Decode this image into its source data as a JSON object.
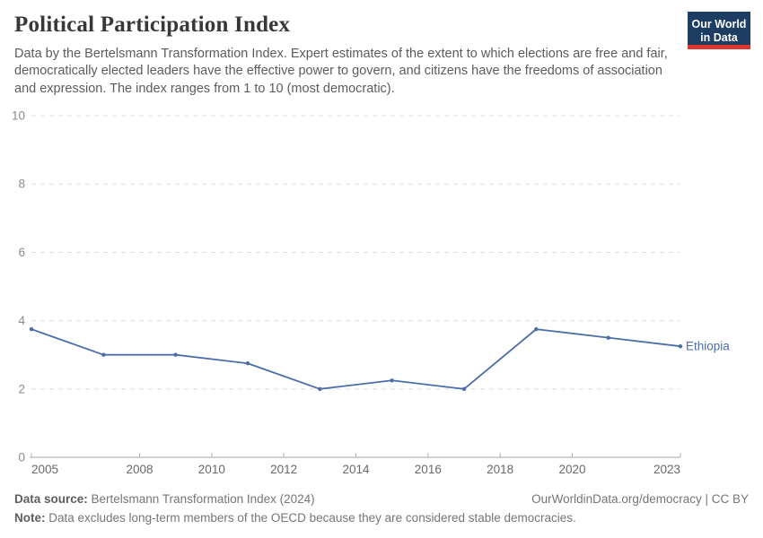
{
  "header": {
    "title": "Political Participation Index",
    "subtitle": "Data by the Bertelsmann Transformation Index. Expert estimates of the extent to which elections are free and fair, democratically elected leaders have the effective power to govern, and citizens have the freedoms of association and expression. The index ranges from 1 to 10 (most democratic).",
    "logo": {
      "line1": "Our World",
      "line2": "in Data",
      "bg_color": "#1d3d63",
      "bar_color": "#e0362e"
    }
  },
  "chart_data": {
    "type": "line",
    "title": "Political Participation Index",
    "x": [
      2005,
      2007,
      2009,
      2011,
      2013,
      2015,
      2017,
      2019,
      2021,
      2023
    ],
    "series": [
      {
        "name": "Ethiopia",
        "values": [
          3.75,
          3.0,
          3.0,
          2.75,
          2.0,
          2.25,
          2.0,
          3.75,
          3.5,
          3.25
        ],
        "color": "#4b6da8"
      }
    ],
    "xlim": [
      2005,
      2023
    ],
    "ylim": [
      0,
      10
    ],
    "x_ticks": [
      2005,
      2008,
      2010,
      2012,
      2014,
      2016,
      2018,
      2020,
      2023
    ],
    "y_ticks": [
      0,
      2,
      4,
      6,
      8,
      10
    ],
    "grid": "horizontal-dashed",
    "legend": "line-end-label"
  },
  "footer": {
    "source_label": "Data source:",
    "source_value": " Bertelsmann Transformation Index (2024)",
    "link": "OurWorldinData.org/democracy",
    "divider": " | ",
    "license": "CC BY",
    "note_label": "Note:",
    "note_value": " Data excludes long-term members of the OECD because they are considered stable democracies."
  }
}
